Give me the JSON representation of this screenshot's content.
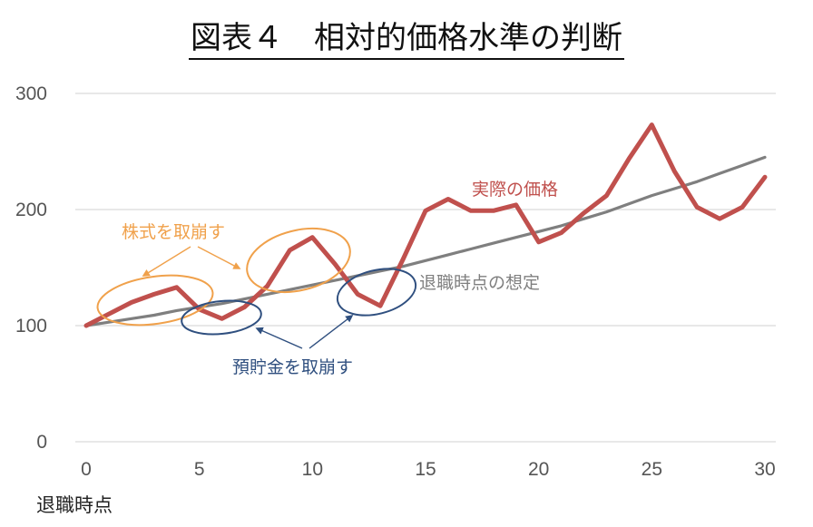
{
  "chart_data": {
    "type": "line",
    "title": "図表４　相対的価格水準の判断",
    "xlabel": "退職時点",
    "ylabel": "",
    "xlim": [
      0,
      30
    ],
    "ylim": [
      0,
      300
    ],
    "grid": true,
    "x_ticks": [
      "0",
      "5",
      "10",
      "15",
      "20",
      "25",
      "30"
    ],
    "y_ticks": [
      "0",
      "100",
      "200",
      "300"
    ],
    "x": [
      0,
      1,
      2,
      3,
      4,
      5,
      6,
      7,
      8,
      9,
      10,
      11,
      12,
      13,
      14,
      15,
      16,
      17,
      18,
      19,
      20,
      21,
      22,
      23,
      24,
      25,
      26,
      27,
      28,
      29,
      30
    ],
    "series": [
      {
        "name": "実際の価格",
        "color": "#c0504d",
        "values": [
          100,
          110,
          120,
          127,
          133,
          114,
          106,
          116,
          134,
          165,
          176,
          153,
          127,
          117,
          157,
          199,
          209,
          199,
          199,
          204,
          172,
          180,
          197,
          212,
          244,
          273,
          233,
          202,
          192,
          202,
          228
        ]
      },
      {
        "name": "退職時点の想定",
        "color": "#7f7f7f",
        "values": [
          100,
          103,
          106,
          109,
          113,
          116,
          119,
          123,
          127,
          131,
          135,
          139,
          143,
          147,
          151,
          156,
          161,
          166,
          171,
          176,
          181,
          186,
          192,
          198,
          205,
          212,
          218,
          224,
          231,
          238,
          245
        ]
      }
    ],
    "annotations": {
      "stock": {
        "label": "株式を取崩す",
        "color": "#f0a14b"
      },
      "deposit": {
        "label": "預貯金を取崩す",
        "color": "#2f4f7f"
      }
    }
  }
}
